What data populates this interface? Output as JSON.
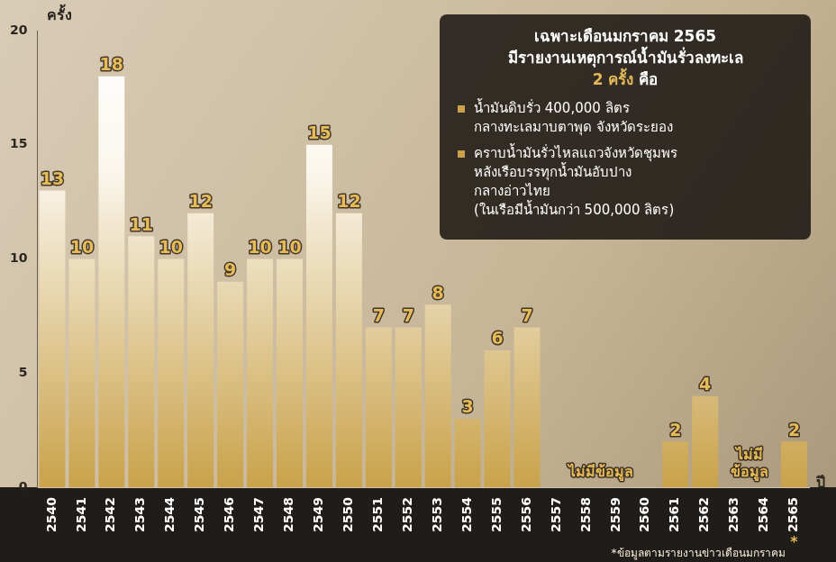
{
  "chart_data": {
    "type": "bar",
    "y_label": "ครั้ง",
    "x_label": "ปี",
    "categories": [
      "2540",
      "2541",
      "2542",
      "2543",
      "2544",
      "2545",
      "2546",
      "2547",
      "2548",
      "2549",
      "2550",
      "2551",
      "2552",
      "2553",
      "2554",
      "2555",
      "2556",
      "2557",
      "2558",
      "2559",
      "2560",
      "2561",
      "2562",
      "2563",
      "2564",
      "2565"
    ],
    "values": [
      13,
      10,
      18,
      11,
      10,
      12,
      9,
      10,
      10,
      15,
      12,
      7,
      7,
      8,
      3,
      6,
      7,
      null,
      null,
      null,
      null,
      2,
      4,
      null,
      null,
      2
    ],
    "color": "#c9a24a",
    "ylim": [
      0,
      20
    ],
    "yticks": [
      0,
      5,
      10,
      15,
      20
    ],
    "grid": false,
    "data_labels": true,
    "annotations": [
      {
        "text": [
          "ไม่มีข้อมูล"
        ],
        "from": "2557",
        "to": "2560"
      },
      {
        "text": [
          "ไม่มี",
          "ข้อมูล"
        ],
        "from": "2563",
        "to": "2564"
      }
    ],
    "footnote_mark": {
      "category": "2565",
      "text": "*"
    },
    "footnote": "*ข้อมูลตามรายงานข่าวเดือนมกราคม",
    "info_box": {
      "title_lines": [
        "เฉพาะเดือนมกราคม 2565",
        "มีรายงานเหตุการณ์น้ำมันรั่วลงทะเล",
        "2 ครั้ง คือ"
      ],
      "highlight": "2 ครั้ง",
      "bullets": [
        [
          "น้ำมันดิบรั่ว 400,000 ลิตร",
          "กลางทะเลมาบตาพุด จังหวัดระยอง"
        ],
        [
          "คราบน้ำมันรั่วไหลแถวจังหวัดชุมพร",
          "หลังเรือบรรทุกน้ำมันอับปาง",
          "กลางอ่าวไทย",
          "(ในเรือมีน้ำมันกว่า 500,000 ลิตร)"
        ]
      ]
    }
  }
}
